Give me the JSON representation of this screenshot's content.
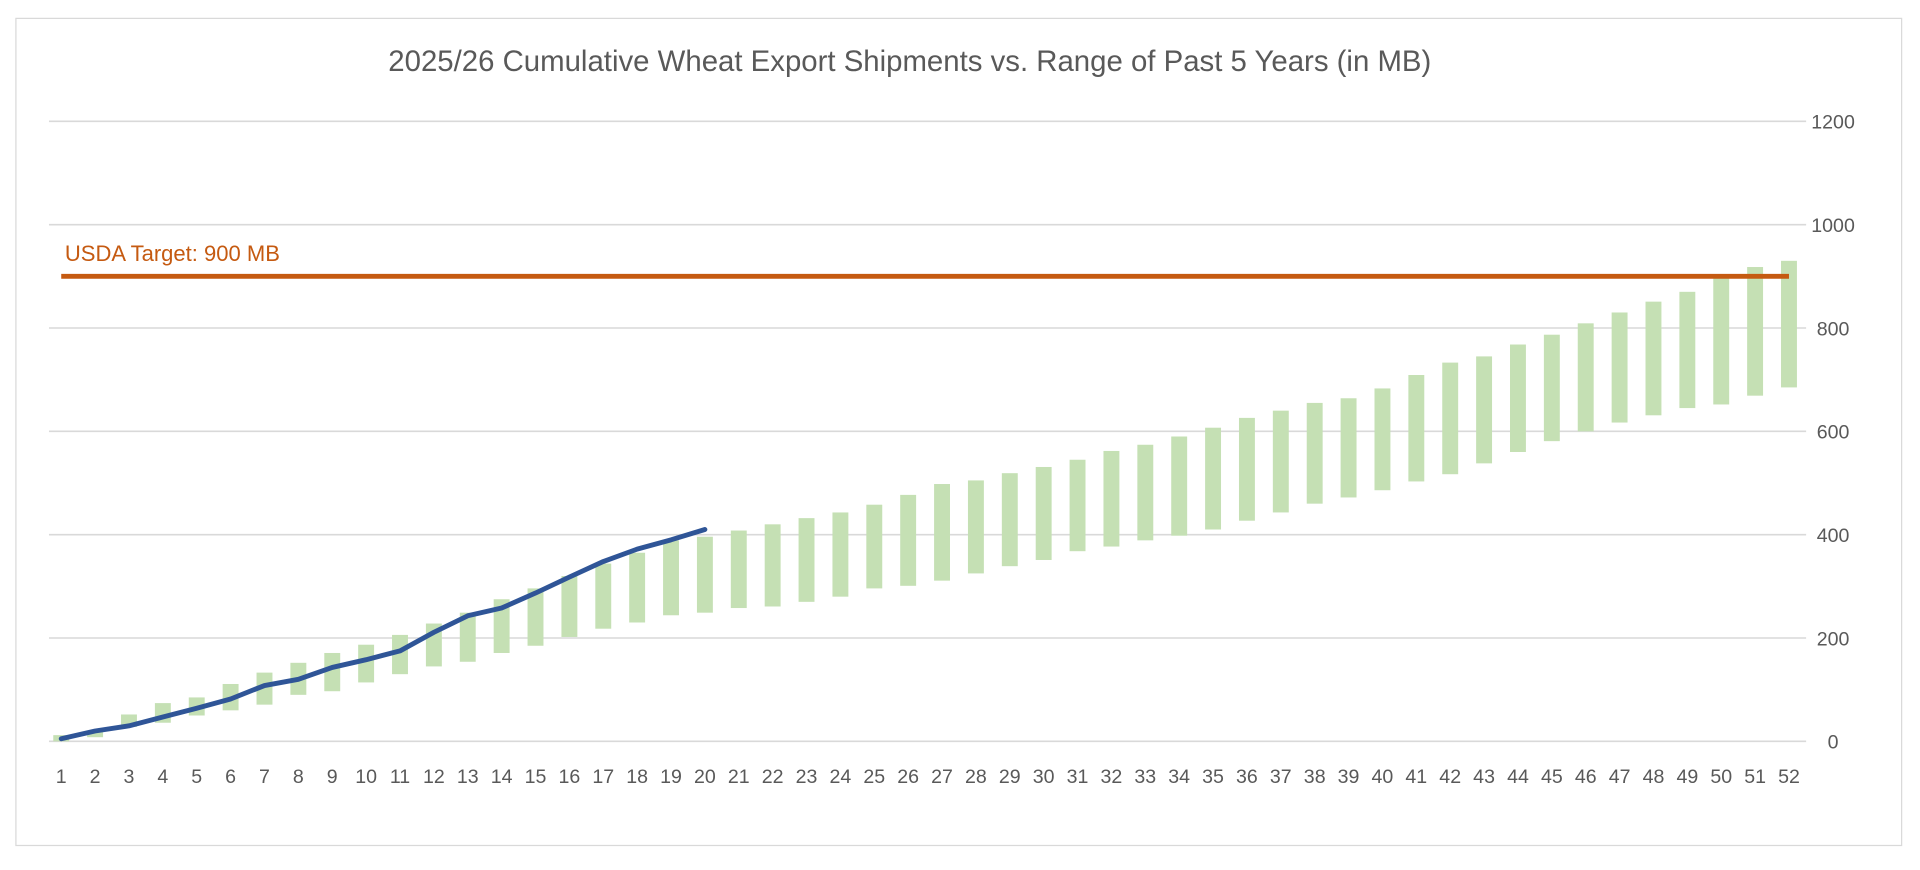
{
  "chart_data": {
    "type": "bar",
    "title": "2025/26 Cumulative Wheat Export Shipments vs. Range of Past 5 Years (in MB)",
    "xlabel": "",
    "ylabel": "",
    "ylim": [
      0,
      1200
    ],
    "y_ticks": [
      0,
      200,
      400,
      600,
      800,
      1000,
      1200
    ],
    "y_axis_side": "right",
    "grid": true,
    "legend": "none",
    "categories": [
      1,
      2,
      3,
      4,
      5,
      6,
      7,
      8,
      9,
      10,
      11,
      12,
      13,
      14,
      15,
      16,
      17,
      18,
      19,
      20,
      21,
      22,
      23,
      24,
      25,
      26,
      27,
      28,
      29,
      30,
      31,
      32,
      33,
      34,
      35,
      36,
      37,
      38,
      39,
      40,
      41,
      42,
      43,
      44,
      45,
      46,
      47,
      48,
      49,
      50,
      51,
      52
    ],
    "range_bars": {
      "color": "#c5e0b4",
      "low": [
        0,
        8,
        28,
        36,
        50,
        60,
        71,
        90,
        97,
        114,
        130,
        145,
        154,
        171,
        185,
        202,
        218,
        230,
        244,
        249,
        258,
        261,
        270,
        280,
        296,
        301,
        311,
        325,
        339,
        351,
        368,
        377,
        389,
        398,
        410,
        427,
        443,
        460,
        472,
        486,
        503,
        517,
        538,
        560,
        581,
        600,
        617,
        631,
        645,
        652,
        669,
        685
      ],
      "high": [
        12,
        18,
        52,
        74,
        85,
        111,
        133,
        152,
        171,
        187,
        206,
        228,
        249,
        275,
        296,
        320,
        344,
        365,
        389,
        396,
        408,
        420,
        432,
        443,
        458,
        477,
        498,
        505,
        519,
        531,
        545,
        562,
        574,
        590,
        607,
        626,
        640,
        655,
        664,
        683,
        709,
        733,
        745,
        768,
        787,
        809,
        830,
        851,
        870,
        896,
        918,
        930
      ]
    },
    "current_year": {
      "color": "#2f5597",
      "values": [
        5,
        20,
        30,
        47,
        64,
        82,
        108,
        120,
        143,
        158,
        175,
        211,
        243,
        258,
        287,
        318,
        348,
        372,
        390,
        410
      ]
    },
    "target": {
      "value": 900,
      "label": "USDA Target: 900 MB",
      "color": "#c55a11"
    }
  }
}
